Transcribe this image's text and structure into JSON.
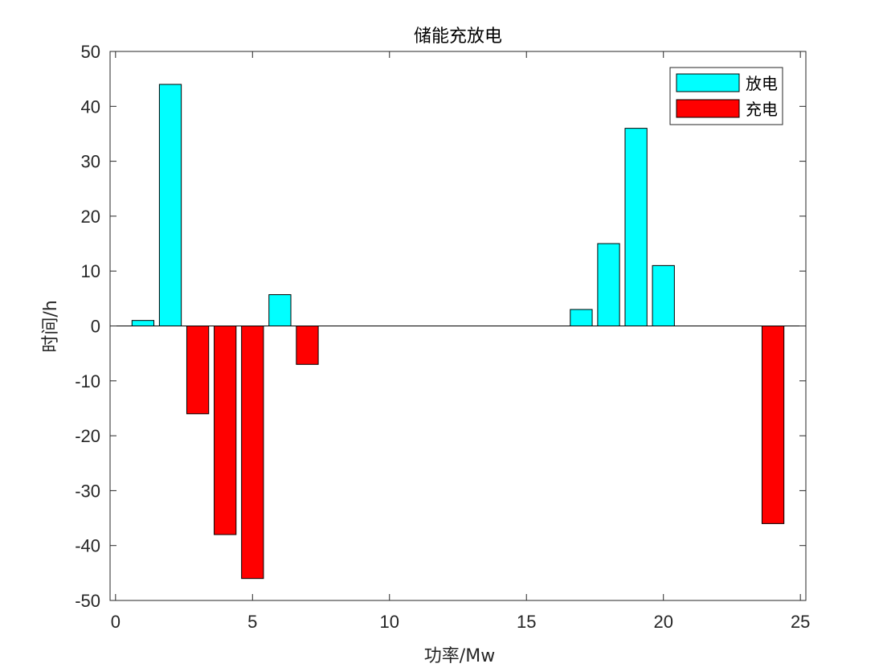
{
  "chart_data": {
    "type": "bar",
    "title": "储能充放电",
    "xlabel": "功率/Mw",
    "ylabel": "时间/h",
    "xlim": [
      -0.2,
      25.2
    ],
    "ylim": [
      -50,
      50
    ],
    "xticks": [
      0,
      5,
      10,
      15,
      20,
      25
    ],
    "yticks": [
      -50,
      -40,
      -30,
      -20,
      -10,
      0,
      10,
      20,
      30,
      40,
      50
    ],
    "xtick_labels": [
      "0",
      "5",
      "10",
      "15",
      "20",
      "25"
    ],
    "ytick_labels": [
      "-50",
      "-40",
      "-30",
      "-20",
      "-10",
      "0",
      "10",
      "20",
      "30",
      "40",
      "50"
    ],
    "grid": false,
    "legend_position": "top-right",
    "series": [
      {
        "name": "放电",
        "color": "#00FFFF",
        "x": [
          1,
          2,
          6,
          17,
          18,
          19,
          20
        ],
        "values": [
          1,
          44,
          5.7,
          3,
          15,
          36,
          11
        ]
      },
      {
        "name": "充电",
        "color": "#FF0000",
        "x": [
          3,
          4,
          5,
          7,
          24
        ],
        "values": [
          -16,
          -38,
          -46,
          -7,
          -36
        ]
      }
    ]
  }
}
